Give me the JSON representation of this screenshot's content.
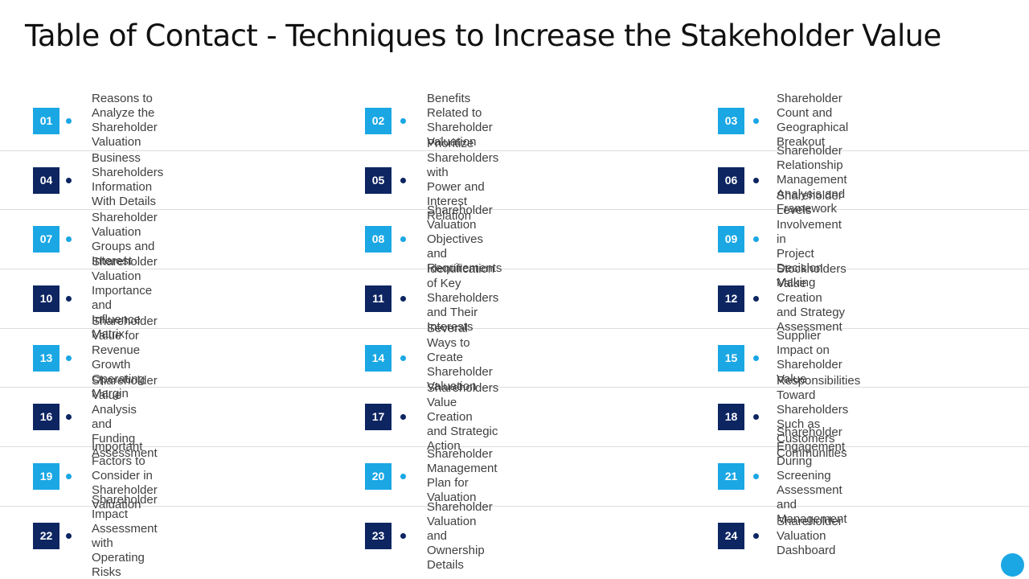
{
  "title": "Table of Contact - Techniques to Increase the Stakeholder Value",
  "colors": {
    "light_badge": "#1aa7e4",
    "dark_badge": "#0d2561",
    "text": "#404040",
    "divider": "#dcdcdc"
  },
  "rows": [
    {
      "style": "light",
      "items": [
        {
          "num": "01",
          "label": "Reasons to Analyze the\nShareholder Valuation"
        },
        {
          "num": "02",
          "label": "Benefits Related to\nShareholder Valuation"
        },
        {
          "num": "03",
          "label": "Shareholder Count and\nGeographical Breakout"
        }
      ]
    },
    {
      "style": "dark",
      "items": [
        {
          "num": "04",
          "label": "Business Shareholders\nInformation With Details"
        },
        {
          "num": "05",
          "label": "Prioritize Shareholders with\nPower and Interest Relation"
        },
        {
          "num": "06",
          "label": "Shareholder Relationship\nManagement Analysis and Framework"
        }
      ]
    },
    {
      "style": "light",
      "items": [
        {
          "num": "07",
          "label": "Shareholder Valuation\nGroups and Interest"
        },
        {
          "num": "08",
          "label": "Shareholder Valuation\nObjectives and Requirements"
        },
        {
          "num": "09",
          "label": "Shareholder Levels Involvement in\nProject Decision Making"
        }
      ]
    },
    {
      "style": "dark",
      "items": [
        {
          "num": "10",
          "label": "Shareholder Valuation\nImportance and Influence Matrix"
        },
        {
          "num": "11",
          "label": "Identification of Key Shareholders\nand Their Interests"
        },
        {
          "num": "12",
          "label": "Stockholders Value Creation\nand Strategy Assessment"
        }
      ]
    },
    {
      "style": "light",
      "items": [
        {
          "num": "13",
          "label": "Shareholder Value for Revenue\nGrowth Operating Margin"
        },
        {
          "num": "14",
          "label": "Several Ways to Create\nShareholder Valuation"
        },
        {
          "num": "15",
          "label": "Supplier Impact on\nShareholder Value"
        }
      ]
    },
    {
      "style": "dark",
      "items": [
        {
          "num": "16",
          "label": "Shareholder Value Analysis\nand Funding Assessment"
        },
        {
          "num": "17",
          "label": "Shareholders Value Creation\nand Strategic Action"
        },
        {
          "num": "18",
          "label": "Responsibilities Toward Shareholders\nSuch as Customers Communities"
        }
      ]
    },
    {
      "style": "light",
      "items": [
        {
          "num": "19",
          "label": "Important Factors to Consider in\nShareholder Valuation"
        },
        {
          "num": "20",
          "label": "Shareholder Management\nPlan for Valuation"
        },
        {
          "num": "21",
          "label": "Shareholder Engagement During\nScreening Assessment and Management"
        }
      ]
    },
    {
      "style": "dark",
      "items": [
        {
          "num": "22",
          "label": "Shareholder Impact Assessment\nwith Operating Risks"
        },
        {
          "num": "23",
          "label": "Shareholder Valuation and\nOwnership Details"
        },
        {
          "num": "24",
          "label": "Shareholder Valuation Dashboard"
        }
      ]
    }
  ]
}
